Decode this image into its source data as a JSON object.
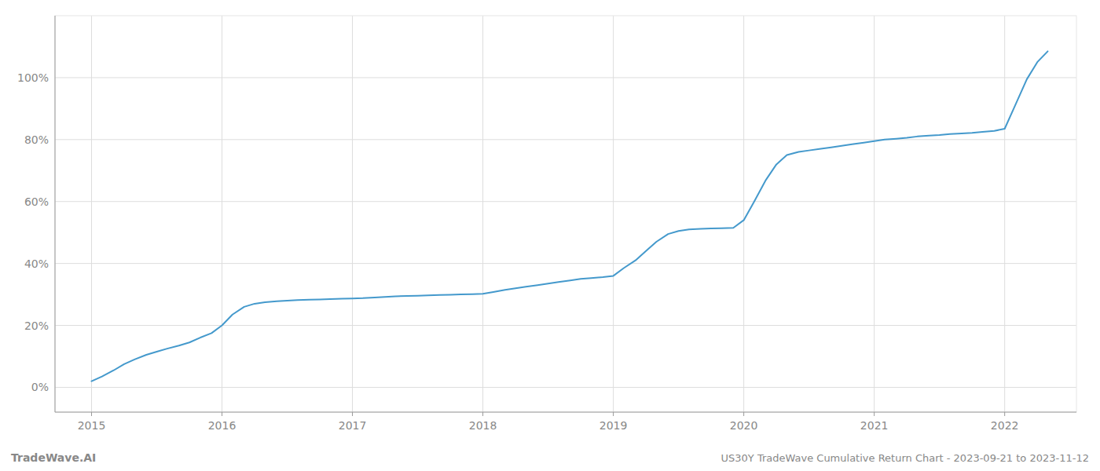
{
  "chart_data": {
    "type": "line",
    "title": "US30Y TradeWave Cumulative Return Chart - 2023-09-21 to 2023-11-12",
    "annotations": [
      "TradeWave.AI"
    ],
    "color": "#4499cc",
    "grid": true,
    "x": [
      2015.0,
      2015.08,
      2015.17,
      2015.25,
      2015.33,
      2015.42,
      2015.5,
      2015.58,
      2015.67,
      2015.75,
      2015.83,
      2015.92,
      2016.0,
      2016.08,
      2016.17,
      2016.25,
      2016.33,
      2016.42,
      2016.5,
      2016.58,
      2016.67,
      2016.75,
      2016.83,
      2016.92,
      2017.0,
      2017.08,
      2017.17,
      2017.25,
      2017.33,
      2017.42,
      2017.5,
      2017.58,
      2017.67,
      2017.75,
      2017.83,
      2017.92,
      2018.0,
      2018.08,
      2018.17,
      2018.25,
      2018.33,
      2018.42,
      2018.5,
      2018.58,
      2018.67,
      2018.75,
      2018.83,
      2018.92,
      2019.0,
      2019.08,
      2019.17,
      2019.25,
      2019.33,
      2019.42,
      2019.5,
      2019.58,
      2019.67,
      2019.75,
      2019.83,
      2019.92,
      2020.0,
      2020.08,
      2020.17,
      2020.25,
      2020.33,
      2020.42,
      2020.5,
      2020.58,
      2020.67,
      2020.75,
      2020.83,
      2020.92,
      2021.0,
      2021.08,
      2021.17,
      2021.25,
      2021.33,
      2021.42,
      2021.5,
      2021.58,
      2021.67,
      2021.75,
      2021.83,
      2021.92,
      2022.0,
      2022.08,
      2022.17,
      2022.25,
      2022.33
    ],
    "values": [
      2.0,
      3.5,
      5.5,
      7.5,
      9.0,
      10.5,
      11.5,
      12.5,
      13.5,
      14.5,
      16.0,
      17.5,
      20.0,
      23.5,
      26.0,
      27.0,
      27.5,
      27.8,
      28.0,
      28.2,
      28.3,
      28.4,
      28.5,
      28.6,
      28.7,
      28.8,
      29.0,
      29.2,
      29.4,
      29.5,
      29.6,
      29.7,
      29.8,
      29.9,
      30.0,
      30.1,
      30.2,
      30.8,
      31.5,
      32.0,
      32.5,
      33.0,
      33.5,
      34.0,
      34.5,
      35.0,
      35.3,
      35.6,
      36.0,
      38.5,
      41.0,
      44.0,
      47.0,
      49.5,
      50.5,
      51.0,
      51.2,
      51.3,
      51.4,
      51.5,
      54.0,
      60.0,
      67.0,
      72.0,
      75.0,
      76.0,
      76.5,
      77.0,
      77.5,
      78.0,
      78.5,
      79.0,
      79.5,
      80.0,
      80.3,
      80.6,
      81.0,
      81.3,
      81.5,
      81.8,
      82.0,
      82.2,
      82.5,
      82.8,
      83.5,
      91.0,
      99.5,
      105.0,
      108.5
    ],
    "xlim": [
      2014.72,
      2022.55
    ],
    "ylim": [
      -8,
      120
    ],
    "xticks": [
      2015,
      2016,
      2017,
      2018,
      2019,
      2020,
      2021,
      2022
    ],
    "yticks": [
      {
        "value": 0,
        "label": "0%"
      },
      {
        "value": 20,
        "label": "20%"
      },
      {
        "value": 40,
        "label": "40%"
      },
      {
        "value": 60,
        "label": "60%"
      },
      {
        "value": 80,
        "label": "80%"
      },
      {
        "value": 100,
        "label": "100%"
      }
    ]
  }
}
